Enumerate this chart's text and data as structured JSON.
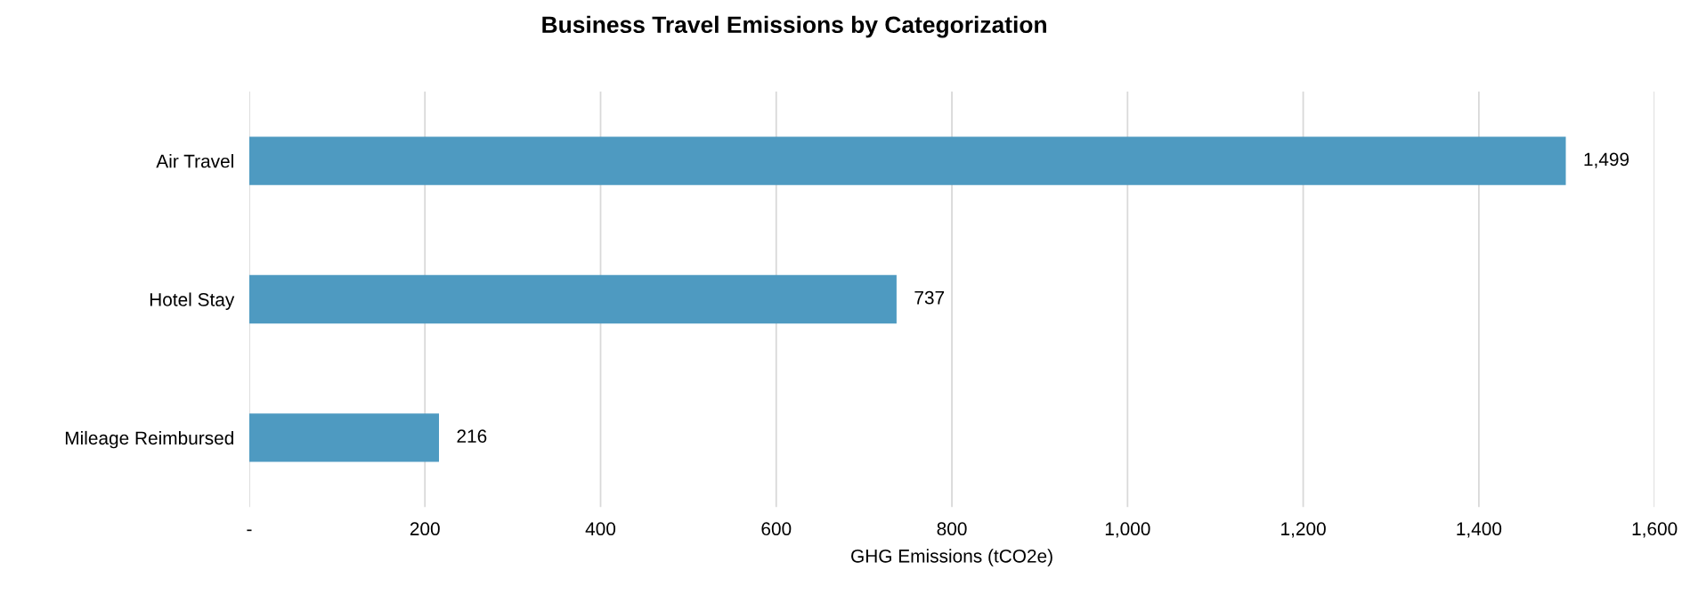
{
  "chart_data": {
    "type": "bar",
    "orientation": "horizontal",
    "title": "Business Travel Emissions by Categorization",
    "xlabel": "GHG Emissions (tCO2e)",
    "categories": [
      "Air Travel",
      "Hotel Stay",
      "Mileage Reimbursed"
    ],
    "values": [
      1499,
      737,
      216
    ],
    "color": "#4e9ac1",
    "xlim": [
      0,
      1600
    ],
    "xticks": [
      {
        "value": 0,
        "label": "-"
      },
      200,
      400,
      600,
      800,
      {
        "value": 1000,
        "label": "1,000"
      },
      {
        "value": 1200,
        "label": "1,200"
      },
      {
        "value": 1400,
        "label": "1,400"
      },
      {
        "value": 1600,
        "label": "1,600"
      }
    ],
    "value_labels": [
      "1,499",
      "737",
      "216"
    ],
    "grid": "x",
    "legend": false
  }
}
